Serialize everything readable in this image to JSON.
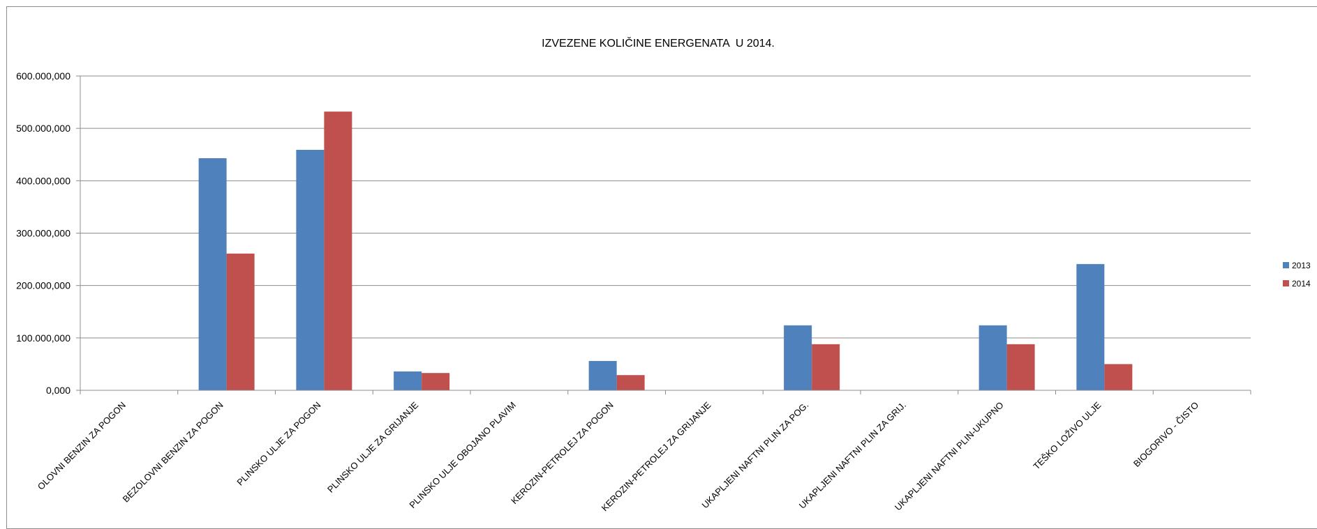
{
  "chart_data": {
    "type": "bar",
    "title": "IZVEZENE KOLIČINE ENERGENATA  U 2014.",
    "xlabel": "",
    "ylabel": "",
    "ylim": [
      0,
      600000000
    ],
    "yticks": [
      0,
      100000000,
      200000000,
      300000000,
      400000000,
      500000000,
      600000000
    ],
    "ytick_labels": [
      "0,000",
      "100.000,000",
      "200.000,000",
      "300.000,000",
      "400.000,000",
      "500.000,000",
      "600.000,000"
    ],
    "grid": true,
    "legend_position": "right",
    "categories": [
      "OLOVNI BENZIN ZA POGON",
      "BEZOLOVNI BENZIN ZA POGON",
      "PLINSKO ULJE ZA POGON",
      "PLINSKO ULJE ZA GRIJANJE",
      "PLINSKO ULJE OBOJANO PLAVIM",
      "KEROZIN-PETROLEJ ZA POGON",
      "KEROZIN-PETROLEJ ZA GRIJANJE",
      "UKAPLJENI NAFTNI PLIN ZA POG.",
      "UKAPLJENI NAFTNI PLIN ZA GRIJ.",
      "UKAPLJENI NAFTNI PLIN-UKUPNO",
      "TEŠKO LOŽIVO ULJE",
      "BIOGORIVO - ČISTO"
    ],
    "series": [
      {
        "name": "2013",
        "color": "#4f81bd",
        "values": [
          500000,
          443000000,
          459000000,
          36000000,
          0,
          56000000,
          0,
          124000000,
          0,
          124000000,
          241000000,
          0
        ]
      },
      {
        "name": "2014",
        "color": "#c0504d",
        "values": [
          0,
          261000000,
          532000000,
          33000000,
          0,
          29000000,
          0,
          88000000,
          0,
          88000000,
          50000000,
          500000
        ]
      }
    ]
  }
}
